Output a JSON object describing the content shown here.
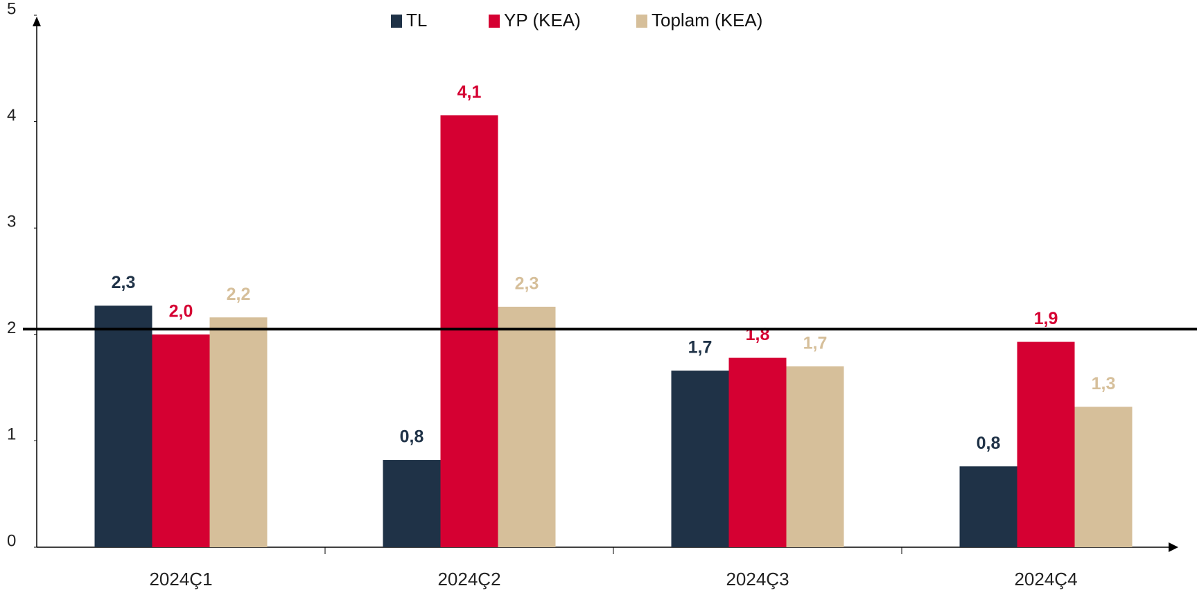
{
  "chart_data": {
    "type": "bar",
    "categories": [
      "2024Ç1",
      "2024Ç2",
      "2024Ç3",
      "2024Ç4"
    ],
    "series": [
      {
        "name": "TL",
        "color": "#1f3247",
        "values": [
          2.27,
          0.82,
          1.66,
          0.76
        ],
        "value_labels": [
          "2,3",
          "0,8",
          "1,7",
          "0,8"
        ]
      },
      {
        "name": "YP (KEA)",
        "color": "#d50032",
        "values": [
          2.0,
          4.06,
          1.78,
          1.93
        ],
        "value_labels": [
          "2,0",
          "4,1",
          "1,8",
          "1,9"
        ]
      },
      {
        "name": "Toplam (KEA)",
        "color": "#d6bf9a",
        "values": [
          2.16,
          2.26,
          1.7,
          1.32
        ],
        "value_labels": [
          "2,2",
          "2,3",
          "1,7",
          "1,3"
        ]
      }
    ],
    "reference_line": 2.05,
    "ylim": [
      0,
      5
    ],
    "yticks": [
      0,
      1,
      2,
      3,
      4,
      5
    ],
    "grid": false,
    "legend": "top"
  }
}
